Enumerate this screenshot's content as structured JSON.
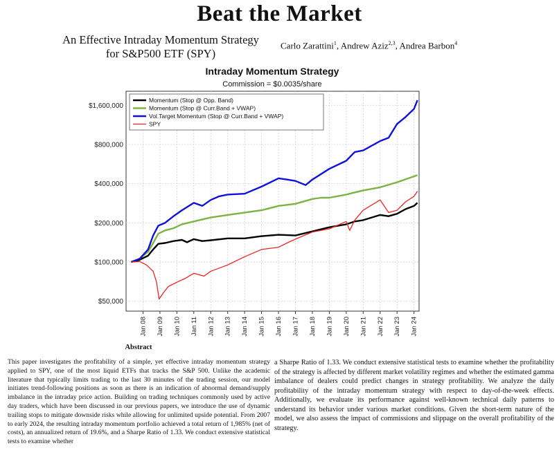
{
  "paper": {
    "title": "Beat the Market",
    "subtitle_line1": "An Effective Intraday Momentum Strategy",
    "subtitle_line2": "for S&P500 ETF (SPY)",
    "authors": [
      {
        "name": "Carlo Zarattini",
        "aff": "1"
      },
      {
        "name": "Andrew Aziz",
        "aff": "2,3"
      },
      {
        "name": "Andrea Barbon",
        "aff": "4"
      }
    ],
    "abstract_heading": "Abstract",
    "abstract_left": "This paper investigates the profitability of a simple, yet effective intraday momentum strategy applied to SPY, one of the most liquid ETFs that tracks the S&P 500. Unlike the academic literature that typically limits trading to the last 30 minutes of the trading session, our model initiates trend-following positions as soon as there is an indication of abnormal demand/supply imbalance in the intraday price action. Building on trading techniques commonly used by active day traders, which have been discussed in our previous papers, we introduce the use of dynamic trailing stops to mitigate downside risks while allowing for unlimited upside potential. From 2007 to early 2024, the resulting intraday momentum portfolio achieved a total return of 1,985% (net of costs), an annualized return of 19.6%, and a Sharpe Ratio of 1.33. We conduct extensive statistical tests to examine whether",
    "abstract_right": "a Sharpe Ratio of 1.33. We conduct extensive statistical tests to examine whether the profitability of the strategy is affected by different market volatility regimes and whether the estimated gamma imbalance of dealers could predict changes in strategy profitability. We analyze the daily profitability of the intraday momentum strategy with respect to day-of-the-week effects. Additionally, we evaluate its performance against well-known technical daily patterns to understand its behavior under various market conditions. Given the short-term nature of the model, we also assess the impact of commissions and slippage on the overall profitability of the strategy."
  },
  "chart_data": {
    "type": "line",
    "title": "Intraday Momentum Strategy",
    "subtitle": "Commission = $0.0035/share",
    "y_scale": "log",
    "ylim": [
      42000,
      2050000
    ],
    "y_ticks": [
      50000,
      100000,
      200000,
      400000,
      800000,
      1600000
    ],
    "y_tick_labels": [
      "$50,000",
      "$100,000",
      "$200,000",
      "$400,000",
      "$800,000",
      "$1,600,000"
    ],
    "xlim": [
      2007.0,
      2024.3
    ],
    "x_ticks": [
      2008,
      2009,
      2010,
      2011,
      2012,
      2013,
      2014,
      2015,
      2016,
      2017,
      2018,
      2019,
      2020,
      2021,
      2022,
      2023,
      2024
    ],
    "x_tick_labels": [
      "Jan 08",
      "Jan 09",
      "Jan 10",
      "Jan 11",
      "Jan 12",
      "Jan 13",
      "Jan 14",
      "Jan 15",
      "Jan 16",
      "Jan 17",
      "Jan 18",
      "Jan 19",
      "Jan 20",
      "Jan 21",
      "Jan 22",
      "Jan 23",
      "Jan 24"
    ],
    "grid": true,
    "legend_position": "top-left",
    "series": [
      {
        "name": "Momentum (Stop @ Opp. Band)",
        "color": "#000000",
        "x": [
          2007.3,
          2007.8,
          2008.3,
          2008.6,
          2008.9,
          2009.3,
          2009.8,
          2010.3,
          2010.6,
          2011.0,
          2011.5,
          2012.0,
          2013.0,
          2014.0,
          2015.0,
          2016.0,
          2017.0,
          2018.0,
          2019.0,
          2020.0,
          2020.5,
          2021.0,
          2022.0,
          2022.5,
          2023.0,
          2023.5,
          2024.0,
          2024.2
        ],
        "y": [
          100000,
          104000,
          112000,
          125000,
          138000,
          140000,
          145000,
          148000,
          142000,
          150000,
          145000,
          147000,
          152000,
          152000,
          158000,
          162000,
          160000,
          172000,
          185000,
          195000,
          205000,
          210000,
          230000,
          225000,
          235000,
          255000,
          270000,
          285000
        ]
      },
      {
        "name": "Momentum (Stop @ Curr.Band + VWAP)",
        "color": "#7cb342",
        "x": [
          2007.3,
          2007.8,
          2008.3,
          2008.6,
          2008.9,
          2009.3,
          2009.8,
          2010.3,
          2011.0,
          2012.0,
          2013.0,
          2014.0,
          2015.0,
          2016.0,
          2017.0,
          2018.0,
          2018.5,
          2019.0,
          2020.0,
          2021.0,
          2022.0,
          2023.0,
          2024.0,
          2024.2
        ],
        "y": [
          100000,
          106000,
          120000,
          140000,
          165000,
          175000,
          182000,
          195000,
          205000,
          220000,
          230000,
          240000,
          250000,
          270000,
          280000,
          305000,
          312000,
          312000,
          330000,
          355000,
          375000,
          410000,
          455000,
          465000
        ]
      },
      {
        "name": "Vol.Target Momentum (Stop @ Curr.Band + VWAP)",
        "color": "#1010dd",
        "x": [
          2007.3,
          2007.8,
          2008.3,
          2008.6,
          2008.9,
          2009.3,
          2009.8,
          2010.3,
          2011.0,
          2011.5,
          2012.0,
          2012.5,
          2013.0,
          2014.0,
          2015.0,
          2016.0,
          2016.5,
          2017.0,
          2017.6,
          2018.0,
          2019.0,
          2020.0,
          2020.5,
          2021.0,
          2022.0,
          2022.5,
          2023.0,
          2023.5,
          2024.0,
          2024.2
        ],
        "y": [
          100000,
          106000,
          125000,
          160000,
          190000,
          200000,
          225000,
          250000,
          285000,
          270000,
          300000,
          320000,
          330000,
          335000,
          380000,
          440000,
          430000,
          420000,
          390000,
          430000,
          520000,
          600000,
          700000,
          720000,
          850000,
          900000,
          1150000,
          1300000,
          1500000,
          1750000
        ]
      },
      {
        "name": "SPY",
        "color": "#ee2222",
        "x": [
          2007.3,
          2007.8,
          2008.2,
          2008.6,
          2008.8,
          2008.95,
          2009.2,
          2009.5,
          2010.0,
          2010.5,
          2011.0,
          2011.6,
          2012.0,
          2013.0,
          2014.0,
          2015.0,
          2016.0,
          2016.5,
          2017.0,
          2018.0,
          2019.0,
          2020.0,
          2020.2,
          2020.5,
          2021.0,
          2022.0,
          2022.5,
          2023.0,
          2023.5,
          2024.0,
          2024.2
        ],
        "y": [
          100000,
          101000,
          95000,
          85000,
          70000,
          52000,
          58000,
          65000,
          70000,
          75000,
          82000,
          78000,
          85000,
          95000,
          110000,
          125000,
          130000,
          140000,
          150000,
          170000,
          180000,
          205000,
          175000,
          210000,
          250000,
          300000,
          240000,
          250000,
          290000,
          320000,
          350000
        ]
      }
    ]
  }
}
